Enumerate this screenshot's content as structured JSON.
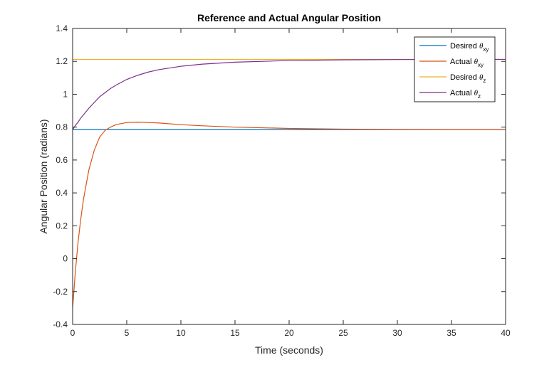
{
  "chart_data": {
    "type": "line",
    "title": "Reference and Actual Angular Position",
    "xlabel": "Time (seconds)",
    "ylabel": "Angular Position (radians)",
    "xlim": [
      0,
      40
    ],
    "ylim": [
      -0.4,
      1.4
    ],
    "grid": false,
    "legend_position": "top-right",
    "x_ticks": [
      "0",
      "5",
      "10",
      "15",
      "20",
      "25",
      "30",
      "35",
      "40"
    ],
    "y_ticks": [
      "-0.4",
      "-0.2",
      "0",
      "0.2",
      "0.4",
      "0.6",
      "0.8",
      "1",
      "1.2",
      "1.4"
    ],
    "x": [
      0,
      0.25,
      0.5,
      0.75,
      1,
      1.5,
      2,
      2.5,
      3,
      3.5,
      4,
      5,
      6,
      7,
      8,
      10,
      12,
      15,
      20,
      25,
      30,
      35,
      40
    ],
    "series": [
      {
        "name": "Desired θxy",
        "legend_base": "Desired ",
        "legend_symbol": "θ",
        "legend_sub": "xy",
        "color": "#0072BD",
        "values": [
          0.785,
          0.785,
          0.785,
          0.785,
          0.785,
          0.785,
          0.785,
          0.785,
          0.785,
          0.785,
          0.785,
          0.785,
          0.785,
          0.785,
          0.785,
          0.785,
          0.785,
          0.785,
          0.785,
          0.785,
          0.785,
          0.785,
          0.785
        ]
      },
      {
        "name": "Actual θxy",
        "legend_base": "Actual ",
        "legend_symbol": "θ",
        "legend_sub": "xy",
        "color": "#D95319",
        "values": [
          -0.3,
          -0.08,
          0.1,
          0.24,
          0.36,
          0.54,
          0.66,
          0.74,
          0.78,
          0.8,
          0.815,
          0.828,
          0.83,
          0.828,
          0.825,
          0.815,
          0.808,
          0.8,
          0.792,
          0.788,
          0.786,
          0.785,
          0.785
        ]
      },
      {
        "name": "Desired θz",
        "legend_base": "Desired ",
        "legend_symbol": "θ",
        "legend_sub": "z",
        "color": "#EDB120",
        "values": [
          1.212,
          1.212,
          1.212,
          1.212,
          1.212,
          1.212,
          1.212,
          1.212,
          1.212,
          1.212,
          1.212,
          1.212,
          1.212,
          1.212,
          1.212,
          1.212,
          1.212,
          1.212,
          1.212,
          1.212,
          1.212,
          1.212,
          1.212
        ]
      },
      {
        "name": "Actual θz",
        "legend_base": "Actual ",
        "legend_symbol": "θ",
        "legend_sub": "z",
        "color": "#7E2F8E",
        "values": [
          0.785,
          0.81,
          0.83,
          0.855,
          0.875,
          0.915,
          0.95,
          0.985,
          1.01,
          1.035,
          1.055,
          1.09,
          1.115,
          1.135,
          1.15,
          1.17,
          1.183,
          1.195,
          1.205,
          1.209,
          1.211,
          1.212,
          1.212
        ]
      }
    ]
  }
}
